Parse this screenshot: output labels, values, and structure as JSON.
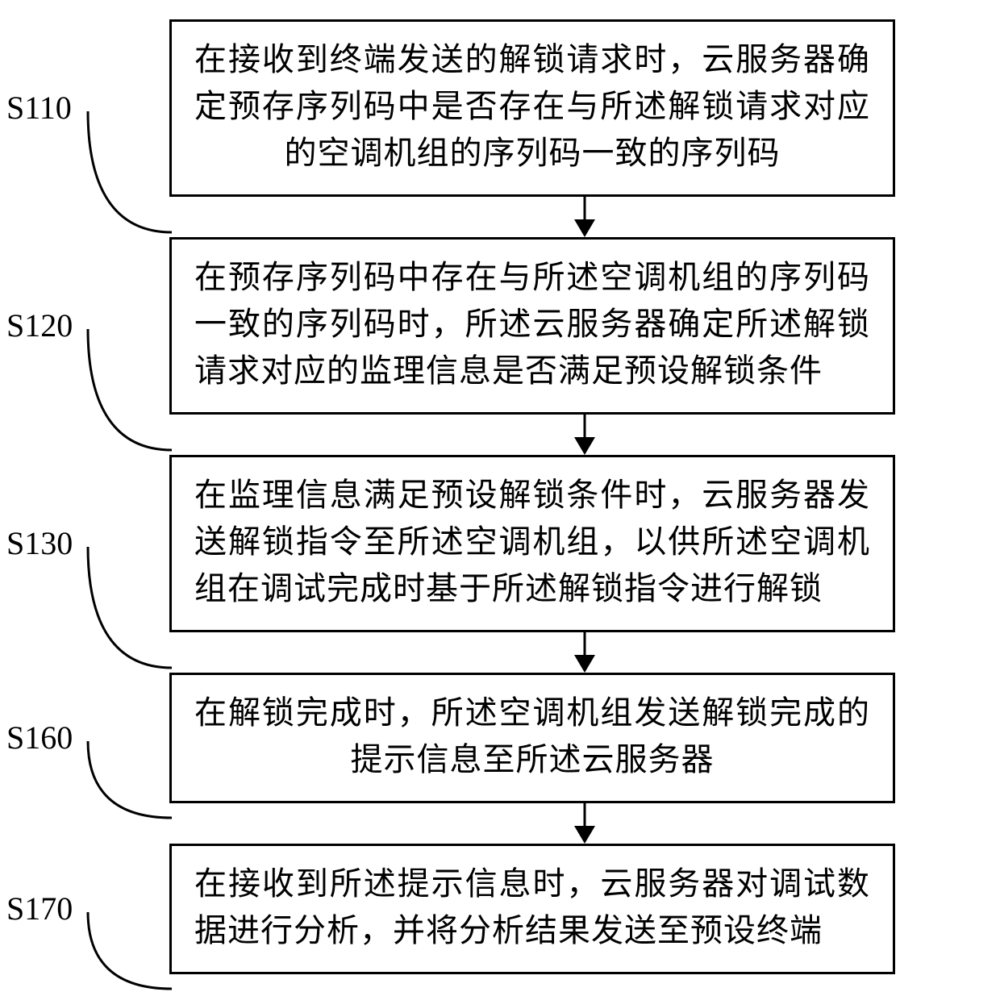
{
  "flowchart": {
    "type": "flowchart",
    "background_color": "#ffffff",
    "stroke_color": "#000000",
    "stroke_width": 3,
    "font_family": "SimSun",
    "label_font_family": "Times New Roman",
    "font_size_pt": 30,
    "arrow_length": 50,
    "arrow_head_w": 26,
    "arrow_head_h": 22,
    "steps": [
      {
        "id": "S110",
        "label": "S110",
        "text": "在接收到终端发送的解锁请求时，云服务器确定预存序列码中是否存在与所述解锁请求对应的空调机组的序列码一致的序列码",
        "connector_h": 160,
        "center_last": true
      },
      {
        "id": "S120",
        "label": "S120",
        "text": "在预存序列码中存在与所述空调机组的序列码一致的序列码时，所述云服务器确定所述解锁请求对应的监理信息是否满足预设解锁条件",
        "connector_h": 160,
        "center_last": false
      },
      {
        "id": "S130",
        "label": "S130",
        "text": "在监理信息满足预设解锁条件时，云服务器发送解锁指令至所述空调机组，以供所述空调机组在调试完成时基于所述解锁指令进行解锁",
        "connector_h": 160,
        "center_last": false
      },
      {
        "id": "S160",
        "label": "S160",
        "text": "在解锁完成时，所述空调机组发送解锁完成的提示信息至所述云服务器",
        "connector_h": 105,
        "center_last": true
      },
      {
        "id": "S170",
        "label": "S170",
        "text": "在接收到所述提示信息时，云服务器对调试数据进行分析，并将分析结果发送至预设终端",
        "connector_h": 105,
        "center_last": false
      }
    ]
  }
}
